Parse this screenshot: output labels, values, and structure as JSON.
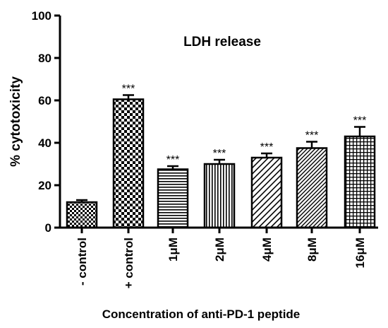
{
  "chart_data": {
    "type": "bar",
    "title": "LDH release",
    "xlabel": "Concentration of anti-PD-1 peptide",
    "ylabel": "% cytotoxicity",
    "ylim": [
      0,
      100
    ],
    "yticks": [
      0,
      20,
      40,
      60,
      80,
      100
    ],
    "categories": [
      "- control",
      "+ control",
      "1μM",
      "2μM",
      "4μM",
      "8μM",
      "16μM"
    ],
    "values": [
      12,
      60.5,
      27.5,
      30,
      33,
      37.5,
      43
    ],
    "errors": [
      1,
      2,
      1.5,
      2,
      2,
      3,
      4.5
    ],
    "significance": [
      "",
      "***",
      "***",
      "***",
      "***",
      "***",
      "***"
    ],
    "patterns": [
      "checker-small",
      "checker-large",
      "horizontal",
      "vertical",
      "diagonal-down",
      "diagonal-down-dense",
      "grid"
    ],
    "grid": false,
    "legend": "none"
  }
}
